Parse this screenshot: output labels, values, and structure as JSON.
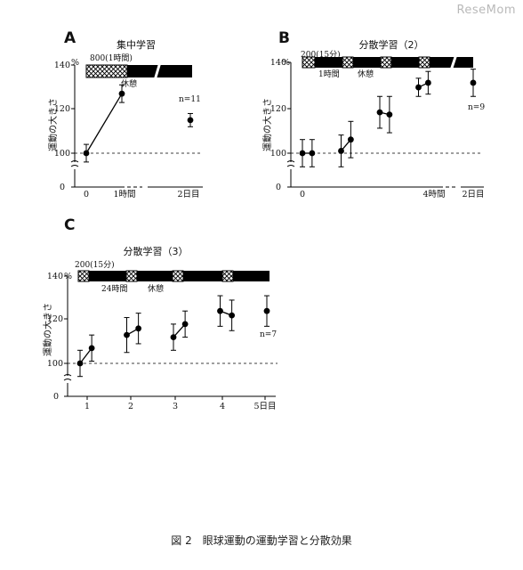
{
  "watermark": "ReseMom",
  "caption": "図 2　眼球運動の運動学習と分散効果",
  "chart_data": [
    {
      "panel": "A",
      "type": "scatter",
      "title": "集中学習",
      "ylabel": "運動の大きさ",
      "y_unit": "%",
      "ylim": [
        100,
        140
      ],
      "yticks": [
        100,
        120,
        140
      ],
      "xticks": [
        "0",
        "1時間",
        "2日目"
      ],
      "bar_label": "800(1時間)",
      "rest_label": "休憩",
      "n_label": "n=11",
      "baseline": 100,
      "points": [
        {
          "x": "0",
          "y": 100,
          "err": 4
        },
        {
          "x": "1時間",
          "y": 127,
          "err": 4
        },
        {
          "x": "2日目",
          "y": 115,
          "err": 3
        }
      ],
      "connected": [
        [
          0,
          1
        ]
      ]
    },
    {
      "panel": "B",
      "type": "scatter",
      "title": "分散学習（2）",
      "ylabel": "運動の大きさ",
      "y_unit": "%",
      "ylim": [
        100,
        140
      ],
      "yticks": [
        100,
        120,
        140
      ],
      "xticks": [
        "0",
        "4時間",
        "2日目"
      ],
      "bar_label": "200(15分)",
      "bar_sublabel": "1時間",
      "rest_label": "休憩",
      "n_label": "n=9",
      "baseline": 100,
      "points": [
        {
          "x": 0.0,
          "y": 100,
          "err": 6
        },
        {
          "x": 0.25,
          "y": 100,
          "err": 6
        },
        {
          "x": 1.0,
          "y": 101,
          "err": 7
        },
        {
          "x": 1.25,
          "y": 106,
          "err": 8
        },
        {
          "x": 2.0,
          "y": 118,
          "err": 7
        },
        {
          "x": 2.25,
          "y": 117,
          "err": 8
        },
        {
          "x": 3.0,
          "y": 129,
          "err": 4
        },
        {
          "x": 3.25,
          "y": 131,
          "err": 5
        },
        {
          "x": "2日目",
          "y": 131,
          "err": 6
        }
      ],
      "connected": [
        [
          0,
          1
        ],
        [
          2,
          3
        ],
        [
          4,
          5
        ],
        [
          6,
          7
        ]
      ]
    },
    {
      "panel": "C",
      "type": "scatter",
      "title": "分散学習（3）",
      "ylabel": "運動の大きさ",
      "y_unit": "%",
      "ylim": [
        100,
        140
      ],
      "yticks": [
        100,
        120,
        140
      ],
      "xticks": [
        "1",
        "2",
        "3",
        "4",
        "5日目"
      ],
      "bar_label": "200(15分)",
      "bar_sublabel": "24時間",
      "rest_label": "休憩",
      "n_label": "n=7",
      "baseline": 100,
      "points": [
        {
          "x": 1.0,
          "y": 100,
          "err": 6
        },
        {
          "x": 1.25,
          "y": 107,
          "err": 6
        },
        {
          "x": 2.0,
          "y": 113,
          "err": 8
        },
        {
          "x": 2.25,
          "y": 116,
          "err": 7
        },
        {
          "x": 3.0,
          "y": 112,
          "err": 6
        },
        {
          "x": 3.25,
          "y": 118,
          "err": 6
        },
        {
          "x": 4.0,
          "y": 124,
          "err": 7
        },
        {
          "x": 4.25,
          "y": 122,
          "err": 7
        },
        {
          "x": "5日目",
          "y": 124,
          "err": 7
        }
      ],
      "connected": [
        [
          0,
          1
        ],
        [
          2,
          3
        ],
        [
          4,
          5
        ],
        [
          6,
          7
        ]
      ]
    }
  ]
}
